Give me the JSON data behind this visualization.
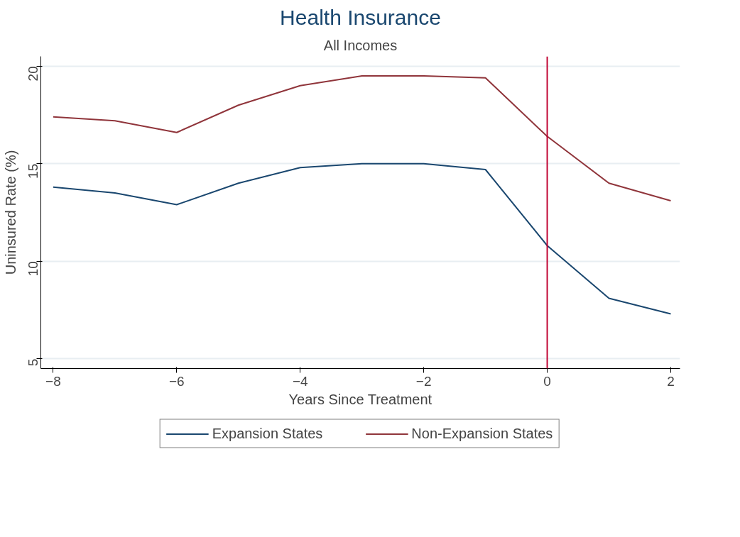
{
  "chart_data": {
    "type": "line",
    "title": "Health Insurance",
    "subtitle": "All Incomes",
    "xlabel": "Years Since Treatment",
    "ylabel": "Uninsured Rate (%)",
    "x": [
      -8,
      -7,
      -6,
      -5,
      -4,
      -3,
      -2,
      -1,
      0,
      1,
      2
    ],
    "series": [
      {
        "name": "Expansion States",
        "color": "#1a476f",
        "values": [
          13.8,
          13.5,
          12.9,
          14.0,
          14.8,
          15.0,
          15.0,
          14.7,
          10.8,
          8.1,
          7.3
        ]
      },
      {
        "name": "Non-Expansion States",
        "color": "#90353b",
        "values": [
          17.4,
          17.2,
          16.6,
          18.0,
          19.0,
          19.5,
          19.5,
          19.4,
          16.4,
          14.0,
          13.1
        ]
      }
    ],
    "xlim": [
      -8.2,
      2.15
    ],
    "ylim": [
      4.5,
      20.5
    ],
    "xticks": [
      -8,
      -6,
      -4,
      -2,
      0,
      2
    ],
    "yticks": [
      5,
      10,
      15,
      20
    ],
    "ref_lines": [
      {
        "axis": "x",
        "value": 0,
        "label": null,
        "color": "#c10534"
      }
    ],
    "grid": "y",
    "legend": "bottom",
    "line_style": "solid",
    "marker": "none"
  }
}
